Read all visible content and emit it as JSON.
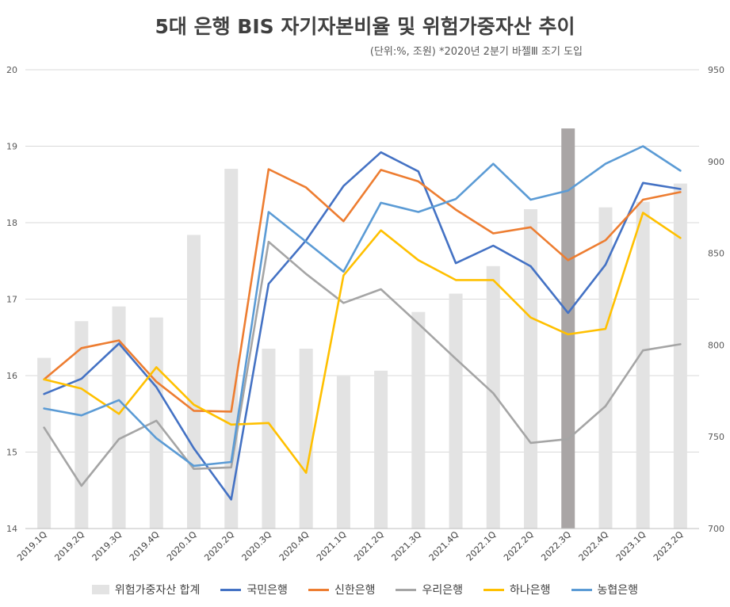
{
  "chart_data": {
    "type": "bar+line",
    "title": "5대 은행 BIS 자기자본비율 및 위험가중자산 추이",
    "subtitle": "(단위:%, 조원) *2020년 2분기 바젤Ⅲ 조기 도입",
    "categories": [
      "2019.1Q",
      "2019.2Q",
      "2019.3Q",
      "2019.4Q",
      "2020.1Q",
      "2020.2Q",
      "2020.3Q",
      "2020.4Q",
      "2021.1Q",
      "2021.2Q",
      "2021.3Q",
      "2021.4Q",
      "2022.1Q",
      "2022.2Q",
      "2022.3Q",
      "2022.4Q",
      "2023.1Q",
      "2023.2Q"
    ],
    "y_left": {
      "min": 14,
      "max": 20,
      "ticks": [
        14,
        15,
        16,
        17,
        18,
        19,
        20
      ]
    },
    "y_right": {
      "min": 700,
      "max": 950,
      "ticks": [
        700,
        750,
        800,
        850,
        900,
        950
      ]
    },
    "grid": true,
    "legend_position": "bottom",
    "highlight_category": "2022.3Q",
    "bar_series": {
      "name": "위험가중자산 합계",
      "axis": "right",
      "color": "#e3e3e3",
      "highlight_color": "#a9a5a5",
      "values": [
        793,
        813,
        821,
        815,
        860,
        896,
        798,
        798,
        783,
        786,
        818,
        828,
        843,
        874,
        918,
        875,
        878,
        888
      ]
    },
    "line_series": [
      {
        "name": "국민은행",
        "color": "#4472c4",
        "values": [
          15.76,
          15.96,
          16.42,
          15.85,
          15.05,
          14.38,
          17.2,
          17.77,
          18.48,
          18.92,
          18.67,
          17.47,
          17.7,
          17.43,
          16.82,
          17.45,
          18.52,
          18.44
        ]
      },
      {
        "name": "신한은행",
        "color": "#ed7d31",
        "values": [
          15.95,
          16.36,
          16.46,
          15.92,
          15.54,
          15.53,
          18.7,
          18.46,
          18.02,
          18.69,
          18.54,
          18.17,
          17.86,
          17.94,
          17.51,
          17.77,
          18.3,
          18.4
        ]
      },
      {
        "name": "우리은행",
        "color": "#a5a5a5",
        "values": [
          15.32,
          14.56,
          15.17,
          15.41,
          14.78,
          14.8,
          17.75,
          17.33,
          16.95,
          17.13,
          16.68,
          16.22,
          15.77,
          15.12,
          15.17,
          15.6,
          16.33,
          16.41
        ]
      },
      {
        "name": "하나은행",
        "color": "#ffc000",
        "values": [
          15.95,
          15.83,
          15.5,
          16.11,
          15.62,
          15.36,
          15.38,
          14.73,
          17.31,
          17.9,
          17.51,
          17.25,
          17.25,
          16.76,
          16.54,
          16.61,
          18.13,
          17.8
        ]
      },
      {
        "name": "농협은행",
        "color": "#5b9bd5",
        "values": [
          15.57,
          15.48,
          15.68,
          15.18,
          14.82,
          14.87,
          18.14,
          17.75,
          17.36,
          18.26,
          18.14,
          18.31,
          18.77,
          18.3,
          18.42,
          18.77,
          19.0,
          18.68
        ]
      }
    ]
  }
}
